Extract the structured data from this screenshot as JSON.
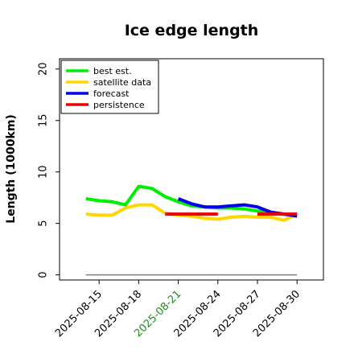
{
  "chart_data": {
    "type": "line",
    "title": "Ice edge length",
    "ylabel": "Length (1000km)",
    "xlabel": "",
    "ylim": [
      -0.5,
      21
    ],
    "yticks": [
      0,
      5,
      10,
      15,
      20
    ],
    "xlim": [
      "2025-08-12",
      "2025-09-01"
    ],
    "xticks": [
      {
        "label": "2025-08-15",
        "color": "#000000"
      },
      {
        "label": "2025-08-18",
        "color": "#000000"
      },
      {
        "label": "2025-08-21",
        "color": "#228B22"
      },
      {
        "label": "2025-08-24",
        "color": "#000000"
      },
      {
        "label": "2025-08-27",
        "color": "#000000"
      },
      {
        "label": "2025-08-30",
        "color": "#000000"
      }
    ],
    "grid": false,
    "legend_position": "top-left",
    "baseline": {
      "y": 0,
      "from": "2025-08-14",
      "to": "2025-08-30",
      "color": "#7f7f7f"
    },
    "series": [
      {
        "name": "best est.",
        "color": "#00ee00",
        "x": [
          "2025-08-14",
          "2025-08-15",
          "2025-08-16",
          "2025-08-17",
          "2025-08-18",
          "2025-08-19",
          "2025-08-20",
          "2025-08-21",
          "2025-08-22",
          "2025-08-23",
          "2025-08-24",
          "2025-08-25",
          "2025-08-26",
          "2025-08-27",
          "2025-08-28",
          "2025-08-29",
          "2025-08-30"
        ],
        "y": [
          7.4,
          7.2,
          7.1,
          6.8,
          8.6,
          8.4,
          7.6,
          7.1,
          6.7,
          6.6,
          6.5,
          6.5,
          6.4,
          6.2,
          6.0,
          5.9,
          5.8
        ]
      },
      {
        "name": "satellite data",
        "color": "#ffd700",
        "x": [
          "2025-08-14",
          "2025-08-15",
          "2025-08-16",
          "2025-08-17",
          "2025-08-18",
          "2025-08-19",
          "2025-08-20",
          "2025-08-21",
          "2025-08-22",
          "2025-08-23",
          "2025-08-24",
          "2025-08-25",
          "2025-08-26",
          "2025-08-27",
          "2025-08-28",
          "2025-08-29",
          "2025-08-30"
        ],
        "y": [
          5.9,
          5.8,
          5.8,
          6.5,
          6.8,
          6.8,
          6.0,
          5.8,
          5.7,
          5.5,
          5.4,
          5.6,
          5.7,
          5.6,
          5.6,
          5.3,
          5.9
        ]
      },
      {
        "name": "forecast",
        "color": "#0000ee",
        "x": [
          "2025-08-21",
          "2025-08-22",
          "2025-08-23",
          "2025-08-24",
          "2025-08-25",
          "2025-08-26",
          "2025-08-27",
          "2025-08-28",
          "2025-08-29",
          "2025-08-30"
        ],
        "y": [
          7.4,
          6.9,
          6.6,
          6.6,
          6.7,
          6.8,
          6.6,
          6.1,
          5.9,
          5.7
        ]
      },
      {
        "name": "persistence",
        "color": "#ee0000",
        "x": [
          "2025-08-20",
          "2025-08-24"
        ],
        "y": [
          5.9,
          5.9
        ]
      },
      {
        "name": "persistence",
        "color": "#ee0000",
        "x": [
          "2025-08-27",
          "2025-08-30"
        ],
        "y": [
          5.9,
          5.9
        ]
      }
    ],
    "legend": [
      {
        "label": "best est.",
        "color": "#00ee00"
      },
      {
        "label": "satellite data",
        "color": "#ffd700"
      },
      {
        "label": "forecast",
        "color": "#0000ee"
      },
      {
        "label": "persistence",
        "color": "#ee0000"
      }
    ]
  }
}
